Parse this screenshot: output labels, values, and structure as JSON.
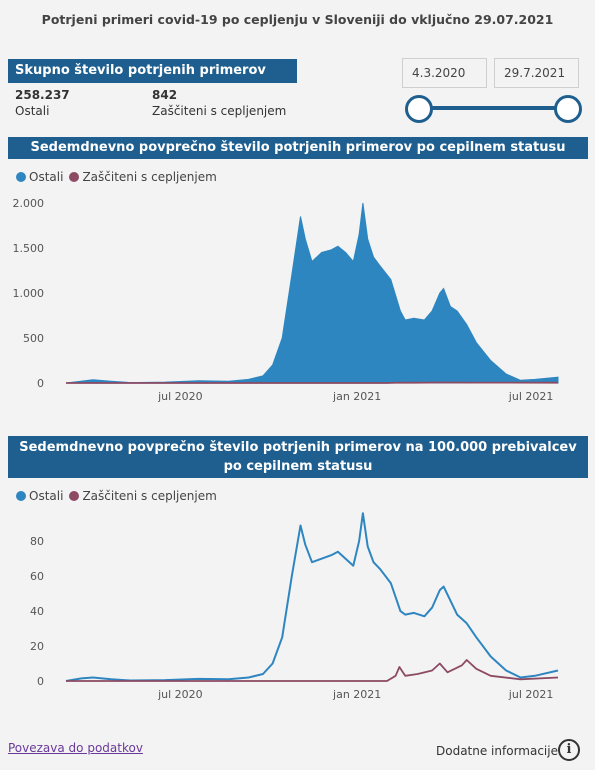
{
  "title": "Potrjeni primeri covid-19 po cepljenju v Sloveniji do vključno 29.07.2021",
  "summary": {
    "header": "Skupno število potrjenih primerov",
    "items": [
      {
        "value": "258.237",
        "label": "Ostali"
      },
      {
        "value": "842",
        "label": "Zaščiteni s cepljenjem"
      }
    ]
  },
  "date_range": {
    "start": "4.3.2020",
    "end": "29.7.2021"
  },
  "colors": {
    "ostali": "#2e86c1",
    "zasciteni": "#8c4a63",
    "header": "#1f5f8f"
  },
  "legend": {
    "ostali": "Ostali",
    "zasciteni": "Zaščiteni s cepljenjem"
  },
  "footer": {
    "link": "Povezava do podatkov",
    "more": "Dodatne informacije",
    "info_icon": "i"
  },
  "chart_data": [
    {
      "type": "area",
      "title": "Sedemdnevno povprečno število potrjenih primerov po cepilnem statusu",
      "x_range": [
        "2020-03-04",
        "2021-07-29"
      ],
      "ylim": [
        0,
        2000
      ],
      "y_ticks": [
        0,
        500,
        1000,
        1500,
        2000
      ],
      "y_tick_labels": [
        "0",
        "500",
        "1.000",
        "1.500",
        "2.000"
      ],
      "x_ticks": [
        "2020-07-01",
        "2021-01-01",
        "2021-07-01"
      ],
      "x_tick_labels": [
        "jul 2020",
        "jan 2021",
        "jul 2021"
      ],
      "legend_position": "top-left",
      "grid": false,
      "series": [
        {
          "name": "Ostali",
          "points": [
            [
              "2020-03-04",
              0
            ],
            [
              "2020-03-15",
              15
            ],
            [
              "2020-04-01",
              35
            ],
            [
              "2020-04-20",
              20
            ],
            [
              "2020-05-10",
              5
            ],
            [
              "2020-06-15",
              10
            ],
            [
              "2020-07-20",
              25
            ],
            [
              "2020-08-20",
              20
            ],
            [
              "2020-09-10",
              40
            ],
            [
              "2020-09-25",
              80
            ],
            [
              "2020-10-05",
              200
            ],
            [
              "2020-10-15",
              500
            ],
            [
              "2020-10-25",
              1200
            ],
            [
              "2020-11-03",
              1850
            ],
            [
              "2020-11-08",
              1600
            ],
            [
              "2020-11-15",
              1350
            ],
            [
              "2020-11-25",
              1450
            ],
            [
              "2020-12-05",
              1480
            ],
            [
              "2020-12-12",
              1520
            ],
            [
              "2020-12-20",
              1450
            ],
            [
              "2020-12-28",
              1350
            ],
            [
              "2021-01-03",
              1650
            ],
            [
              "2021-01-07",
              2000
            ],
            [
              "2021-01-12",
              1600
            ],
            [
              "2021-01-18",
              1400
            ],
            [
              "2021-01-25",
              1300
            ],
            [
              "2021-02-05",
              1150
            ],
            [
              "2021-02-15",
              800
            ],
            [
              "2021-02-20",
              700
            ],
            [
              "2021-03-01",
              720
            ],
            [
              "2021-03-12",
              700
            ],
            [
              "2021-03-20",
              800
            ],
            [
              "2021-03-28",
              1000
            ],
            [
              "2021-04-01",
              1050
            ],
            [
              "2021-04-08",
              850
            ],
            [
              "2021-04-15",
              800
            ],
            [
              "2021-04-25",
              650
            ],
            [
              "2021-05-05",
              450
            ],
            [
              "2021-05-20",
              250
            ],
            [
              "2021-06-05",
              100
            ],
            [
              "2021-06-20",
              30
            ],
            [
              "2021-07-05",
              40
            ],
            [
              "2021-07-29",
              65
            ]
          ]
        },
        {
          "name": "Zaščiteni s cepljenjem",
          "points": [
            [
              "2020-03-04",
              0
            ],
            [
              "2021-02-01",
              0
            ],
            [
              "2021-02-15",
              4
            ],
            [
              "2021-03-01",
              3
            ],
            [
              "2021-04-01",
              6
            ],
            [
              "2021-05-01",
              5
            ],
            [
              "2021-07-29",
              3
            ]
          ]
        }
      ]
    },
    {
      "type": "line",
      "title": "Sedemdnevno povprečno število potrjenih primerov na 100.000 prebivalcev po cepilnem statusu",
      "x_range": [
        "2020-03-04",
        "2021-07-29"
      ],
      "ylim": [
        0,
        95
      ],
      "y_ticks": [
        0,
        20,
        40,
        60,
        80
      ],
      "y_tick_labels": [
        "0",
        "20",
        "40",
        "60",
        "80"
      ],
      "x_ticks": [
        "2020-07-01",
        "2021-01-01",
        "2021-07-01"
      ],
      "x_tick_labels": [
        "jul 2020",
        "jan 2021",
        "jul 2021"
      ],
      "legend_position": "top-left",
      "grid": false,
      "series": [
        {
          "name": "Ostali",
          "points": [
            [
              "2020-03-04",
              0
            ],
            [
              "2020-03-20",
              1.5
            ],
            [
              "2020-04-01",
              2
            ],
            [
              "2020-04-20",
              1
            ],
            [
              "2020-05-10",
              0.3
            ],
            [
              "2020-06-15",
              0.5
            ],
            [
              "2020-07-20",
              1.2
            ],
            [
              "2020-08-20",
              1
            ],
            [
              "2020-09-10",
              2
            ],
            [
              "2020-09-25",
              4
            ],
            [
              "2020-10-05",
              10
            ],
            [
              "2020-10-15",
              25
            ],
            [
              "2020-10-25",
              60
            ],
            [
              "2020-11-03",
              89
            ],
            [
              "2020-11-08",
              78
            ],
            [
              "2020-11-15",
              68
            ],
            [
              "2020-11-25",
              70
            ],
            [
              "2020-12-05",
              72
            ],
            [
              "2020-12-12",
              74
            ],
            [
              "2020-12-20",
              70
            ],
            [
              "2020-12-28",
              66
            ],
            [
              "2021-01-03",
              80
            ],
            [
              "2021-01-07",
              96
            ],
            [
              "2021-01-12",
              77
            ],
            [
              "2021-01-18",
              68
            ],
            [
              "2021-01-25",
              64
            ],
            [
              "2021-02-05",
              56
            ],
            [
              "2021-02-15",
              40
            ],
            [
              "2021-02-20",
              38
            ],
            [
              "2021-03-01",
              39
            ],
            [
              "2021-03-12",
              37
            ],
            [
              "2021-03-20",
              42
            ],
            [
              "2021-03-28",
              52
            ],
            [
              "2021-04-01",
              54
            ],
            [
              "2021-04-08",
              46
            ],
            [
              "2021-04-15",
              38
            ],
            [
              "2021-04-25",
              33
            ],
            [
              "2021-05-05",
              25
            ],
            [
              "2021-05-20",
              14
            ],
            [
              "2021-06-05",
              6
            ],
            [
              "2021-06-20",
              2
            ],
            [
              "2021-07-05",
              3
            ],
            [
              "2021-07-29",
              6
            ]
          ]
        },
        {
          "name": "Zaščiteni s cepljenjem",
          "points": [
            [
              "2020-03-04",
              0
            ],
            [
              "2021-02-01",
              0
            ],
            [
              "2021-02-10",
              3
            ],
            [
              "2021-02-14",
              8
            ],
            [
              "2021-02-20",
              3
            ],
            [
              "2021-03-05",
              4
            ],
            [
              "2021-03-20",
              6
            ],
            [
              "2021-03-28",
              10
            ],
            [
              "2021-04-05",
              5
            ],
            [
              "2021-04-20",
              9
            ],
            [
              "2021-04-25",
              12
            ],
            [
              "2021-05-05",
              7
            ],
            [
              "2021-05-20",
              3
            ],
            [
              "2021-06-20",
              1
            ],
            [
              "2021-07-29",
              2
            ]
          ]
        }
      ]
    }
  ]
}
